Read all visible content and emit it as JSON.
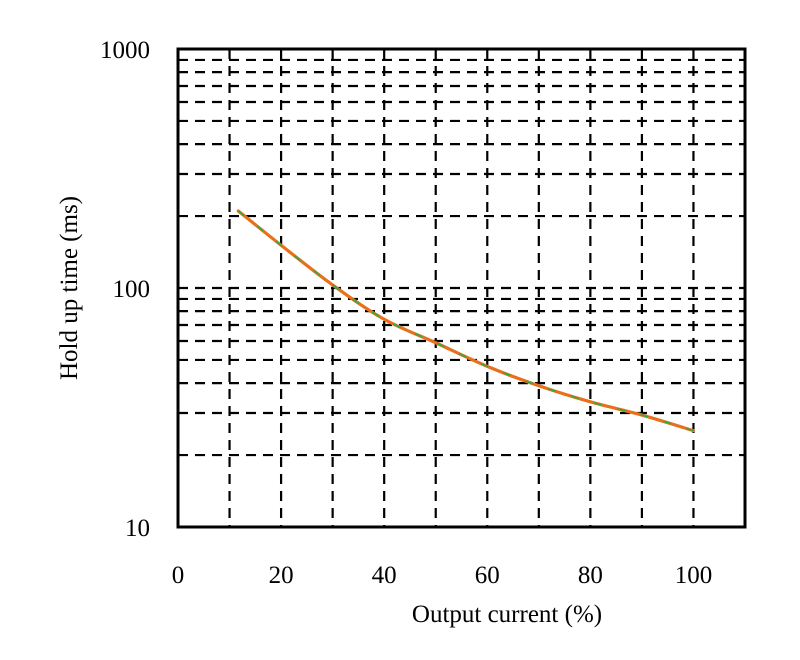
{
  "chart_data": {
    "type": "line",
    "title": "",
    "xlabel": "Output current (%)",
    "ylabel": "Hold up time (ms)",
    "xlim": [
      0,
      110
    ],
    "ylim": [
      10,
      1000
    ],
    "yscale": "log",
    "grid": true,
    "grid_style": "dashed",
    "legend": null,
    "x_ticks": [
      0,
      20,
      40,
      60,
      80,
      100
    ],
    "x_tick_labels": [
      "0",
      "20",
      "40",
      "60",
      "80",
      "100"
    ],
    "y_ticks": [
      10,
      100,
      1000
    ],
    "y_tick_labels": [
      "10",
      "100",
      "1000"
    ],
    "x_minor_gridlines": [
      10,
      20,
      30,
      40,
      50,
      60,
      70,
      80,
      90,
      100
    ],
    "y_minor_gridlines": [
      20,
      30,
      40,
      50,
      60,
      70,
      80,
      90,
      100,
      200,
      300,
      400,
      500,
      600,
      700,
      800,
      900
    ],
    "series": [
      {
        "name": "Hold up time",
        "color": "#E8701A",
        "overlay_color": "#2DAA4A",
        "x": [
          11.7,
          20,
          30,
          40,
          50,
          60,
          70,
          80,
          90,
          100
        ],
        "values": [
          210,
          151,
          103,
          74,
          59,
          47,
          39,
          33.4,
          29.4,
          25.3
        ]
      }
    ]
  }
}
